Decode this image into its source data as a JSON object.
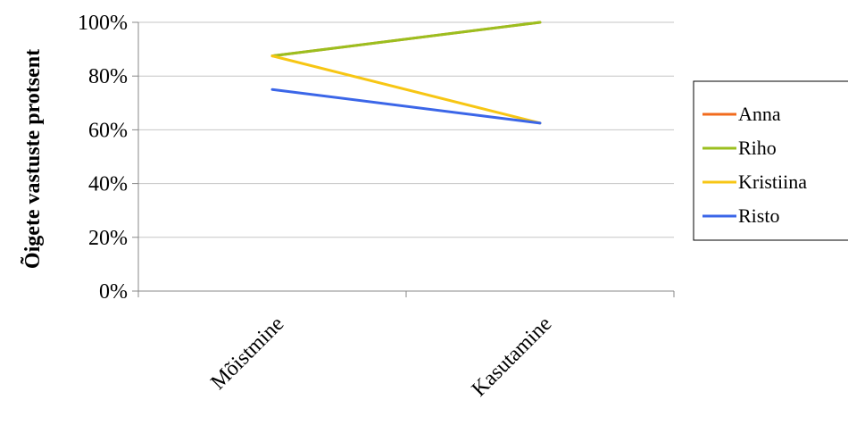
{
  "chart_data": {
    "type": "line",
    "title": "",
    "xlabel": "",
    "ylabel": "Õigete vastuste protsent",
    "categories": [
      "Mõistmine",
      "Kasutamine"
    ],
    "y_tick_labels": [
      "0%",
      "20%",
      "40%",
      "60%",
      "80%",
      "100%"
    ],
    "ylim": [
      0,
      100
    ],
    "grid": true,
    "legend_position": "right",
    "series": [
      {
        "name": "Anna",
        "values": [
          87.5,
          100
        ],
        "color": "#f26b1d"
      },
      {
        "name": "Riho",
        "values": [
          87.5,
          100
        ],
        "color": "#9bbf1f"
      },
      {
        "name": "Kristiina",
        "values": [
          87.5,
          62.5
        ],
        "color": "#f7c614"
      },
      {
        "name": "Risto",
        "values": [
          75,
          62.5
        ],
        "color": "#3b66e8"
      }
    ]
  }
}
